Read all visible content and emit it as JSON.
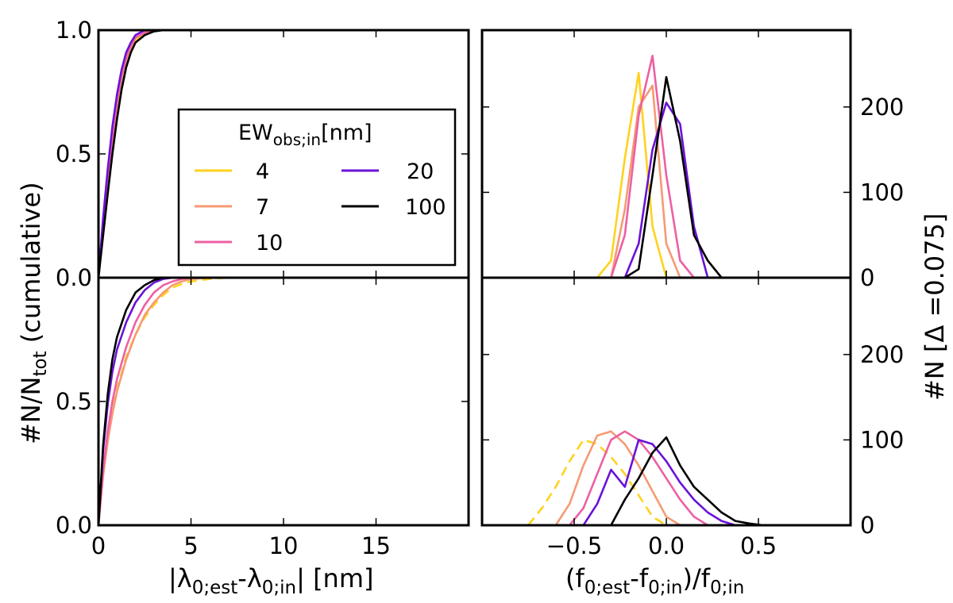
{
  "chart_data": [
    {
      "id": "cum_top",
      "type": "line",
      "panel": "top-left",
      "title": "",
      "xlim": [
        0,
        20
      ],
      "ylim": [
        0,
        1
      ],
      "xticks": [
        0,
        5,
        10,
        15
      ],
      "yticks": [
        0.0,
        0.5,
        1.0
      ],
      "ytick_labels": [
        "0.0",
        "0.5",
        "1.0"
      ],
      "xtick_labels": [],
      "series": [
        {
          "name": "4",
          "color": "#FFD21E",
          "dash": false,
          "x": [
            0,
            0.25,
            0.5,
            0.75,
            1.0,
            1.25,
            1.5,
            1.75,
            2.0,
            2.5,
            3.0,
            3.5
          ],
          "y": [
            0,
            0.18,
            0.36,
            0.52,
            0.66,
            0.78,
            0.86,
            0.92,
            0.96,
            0.99,
            1.0,
            1.0
          ]
        },
        {
          "name": "7",
          "color": "#F59A74",
          "dash": false,
          "x": [
            0,
            0.25,
            0.5,
            0.75,
            1.0,
            1.25,
            1.5,
            1.75,
            2.0,
            2.5,
            3.0
          ],
          "y": [
            0,
            0.2,
            0.38,
            0.55,
            0.69,
            0.8,
            0.88,
            0.93,
            0.97,
            0.99,
            1.0
          ]
        },
        {
          "name": "10",
          "color": "#EE5FA3",
          "dash": false,
          "x": [
            0,
            0.25,
            0.5,
            0.75,
            1.0,
            1.25,
            1.5,
            1.75,
            2.0,
            2.5,
            3.0
          ],
          "y": [
            0,
            0.21,
            0.4,
            0.57,
            0.71,
            0.82,
            0.89,
            0.94,
            0.97,
            0.99,
            1.0
          ]
        },
        {
          "name": "20",
          "color": "#6A12D8",
          "dash": false,
          "x": [
            0,
            0.25,
            0.5,
            0.75,
            1.0,
            1.25,
            1.5,
            1.75,
            2.0,
            2.5,
            3.0
          ],
          "y": [
            0,
            0.24,
            0.44,
            0.61,
            0.74,
            0.84,
            0.91,
            0.95,
            0.98,
            1.0,
            1.0
          ]
        },
        {
          "name": "100",
          "color": "#000000",
          "dash": false,
          "x": [
            0,
            0.25,
            0.5,
            0.75,
            1.0,
            1.25,
            1.5,
            1.75,
            2.0,
            2.5,
            3.0,
            3.5
          ],
          "y": [
            0,
            0.17,
            0.34,
            0.5,
            0.64,
            0.76,
            0.85,
            0.91,
            0.95,
            0.98,
            0.995,
            1.0
          ]
        }
      ]
    },
    {
      "id": "hist_top",
      "type": "line",
      "panel": "top-right",
      "title": "",
      "xlim": [
        -1.0,
        1.0
      ],
      "ylim": [
        0,
        290
      ],
      "xticks": [
        -0.5,
        0.0,
        0.5
      ],
      "yticks": [
        0,
        100,
        200
      ],
      "ytick_labels": [
        "0",
        "100",
        "200"
      ],
      "xtick_labels": [],
      "series": [
        {
          "name": "4",
          "color": "#FFD21E",
          "dash": false,
          "x": [
            -0.375,
            -0.3,
            -0.225,
            -0.15,
            -0.075,
            0.0
          ],
          "y": [
            0,
            20,
            140,
            240,
            60,
            0
          ]
        },
        {
          "name": "7",
          "color": "#F59A74",
          "dash": false,
          "x": [
            -0.3,
            -0.225,
            -0.15,
            -0.075,
            0.0,
            0.075
          ],
          "y": [
            0,
            80,
            200,
            225,
            40,
            0
          ]
        },
        {
          "name": "10",
          "color": "#EE5FA3",
          "dash": false,
          "x": [
            -0.3,
            -0.225,
            -0.15,
            -0.075,
            0.0,
            0.075,
            0.15
          ],
          "y": [
            0,
            50,
            190,
            260,
            120,
            20,
            0
          ]
        },
        {
          "name": "20",
          "color": "#6A12D8",
          "dash": false,
          "x": [
            -0.225,
            -0.15,
            -0.075,
            0.0,
            0.075,
            0.15,
            0.225
          ],
          "y": [
            0,
            40,
            150,
            205,
            180,
            60,
            0
          ]
        },
        {
          "name": "100",
          "color": "#000000",
          "dash": false,
          "x": [
            -0.225,
            -0.15,
            -0.075,
            0.0,
            0.075,
            0.15,
            0.225,
            0.3
          ],
          "y": [
            0,
            10,
            120,
            235,
            160,
            50,
            20,
            0
          ]
        }
      ]
    },
    {
      "id": "cum_bottom",
      "type": "line",
      "panel": "bottom-left",
      "title": "",
      "xlim": [
        0,
        20
      ],
      "ylim": [
        0,
        1
      ],
      "xticks": [
        0,
        5,
        10,
        15
      ],
      "yticks": [
        0.0,
        0.5
      ],
      "ytick_labels": [
        "0.0",
        "0.5"
      ],
      "xtick_labels": [
        "0",
        "5",
        "10",
        "15"
      ],
      "series": [
        {
          "name": "4",
          "color": "#FFD21E",
          "dash": true,
          "x": [
            0,
            0.25,
            0.5,
            0.75,
            1.0,
            1.5,
            2.0,
            2.5,
            3.0,
            3.5,
            4.0,
            4.5,
            5.0,
            5.5,
            6.0,
            7.0
          ],
          "y": [
            0,
            0.2,
            0.35,
            0.46,
            0.55,
            0.68,
            0.77,
            0.84,
            0.89,
            0.93,
            0.96,
            0.975,
            0.985,
            0.99,
            0.995,
            1.0
          ]
        },
        {
          "name": "7",
          "color": "#F59A74",
          "dash": false,
          "x": [
            0,
            0.25,
            0.5,
            0.75,
            1.0,
            1.5,
            2.0,
            2.5,
            3.0,
            3.5,
            4.0,
            4.5,
            5.0,
            6.0
          ],
          "y": [
            0,
            0.2,
            0.34,
            0.45,
            0.54,
            0.67,
            0.77,
            0.85,
            0.9,
            0.94,
            0.97,
            0.985,
            0.995,
            1.0
          ]
        },
        {
          "name": "10",
          "color": "#EE5FA3",
          "dash": false,
          "x": [
            0,
            0.25,
            0.5,
            0.75,
            1.0,
            1.5,
            2.0,
            2.5,
            3.0,
            3.5,
            4.0,
            4.5,
            5.0
          ],
          "y": [
            0,
            0.22,
            0.38,
            0.5,
            0.59,
            0.72,
            0.82,
            0.89,
            0.94,
            0.97,
            0.985,
            0.995,
            1.0
          ]
        },
        {
          "name": "20",
          "color": "#6A12D8",
          "dash": false,
          "x": [
            0,
            0.25,
            0.5,
            0.75,
            1.0,
            1.5,
            2.0,
            2.5,
            3.0,
            3.5,
            4.0
          ],
          "y": [
            0,
            0.3,
            0.49,
            0.62,
            0.71,
            0.82,
            0.9,
            0.95,
            0.98,
            0.995,
            1.0
          ]
        },
        {
          "name": "100",
          "color": "#000000",
          "dash": false,
          "x": [
            0,
            0.25,
            0.5,
            0.75,
            1.0,
            1.5,
            2.0,
            2.5,
            3.0,
            3.5
          ],
          "y": [
            0,
            0.32,
            0.53,
            0.67,
            0.76,
            0.87,
            0.94,
            0.97,
            0.99,
            1.0
          ]
        }
      ]
    },
    {
      "id": "hist_bottom",
      "type": "line",
      "panel": "bottom-right",
      "title": "",
      "xlim": [
        -1.0,
        1.0
      ],
      "ylim": [
        0,
        290
      ],
      "xticks": [
        -0.5,
        0.0,
        0.5
      ],
      "yticks": [
        0,
        100,
        200
      ],
      "ytick_labels": [
        "0",
        "100",
        "200"
      ],
      "xtick_labels": [
        "−0.5",
        "0.0",
        "0.5"
      ],
      "series": [
        {
          "name": "4",
          "color": "#FFD21E",
          "dash": true,
          "x": [
            -0.75,
            -0.675,
            -0.6,
            -0.525,
            -0.45,
            -0.375,
            -0.3,
            -0.225,
            -0.15,
            -0.075,
            0.0
          ],
          "y": [
            0,
            20,
            45,
            75,
            100,
            95,
            80,
            60,
            35,
            10,
            0
          ]
        },
        {
          "name": "7",
          "color": "#F59A74",
          "dash": false,
          "x": [
            -0.6,
            -0.525,
            -0.45,
            -0.375,
            -0.3,
            -0.225,
            -0.15,
            -0.075,
            0.0,
            0.075
          ],
          "y": [
            0,
            25,
            70,
            105,
            110,
            95,
            70,
            40,
            10,
            0
          ]
        },
        {
          "name": "10",
          "color": "#EE5FA3",
          "dash": false,
          "x": [
            -0.525,
            -0.45,
            -0.375,
            -0.3,
            -0.225,
            -0.15,
            -0.075,
            0.0,
            0.075,
            0.15,
            0.225
          ],
          "y": [
            0,
            20,
            60,
            100,
            110,
            100,
            80,
            55,
            30,
            10,
            0
          ]
        },
        {
          "name": "20",
          "color": "#6A12D8",
          "dash": false,
          "x": [
            -0.45,
            -0.375,
            -0.3,
            -0.225,
            -0.15,
            -0.075,
            0.0,
            0.075,
            0.15,
            0.225,
            0.3,
            0.375
          ],
          "y": [
            0,
            25,
            65,
            45,
            100,
            95,
            75,
            50,
            30,
            15,
            5,
            0
          ]
        },
        {
          "name": "100",
          "color": "#000000",
          "dash": false,
          "x": [
            -0.3,
            -0.225,
            -0.15,
            -0.075,
            0.0,
            0.075,
            0.15,
            0.225,
            0.3,
            0.375,
            0.45,
            0.525
          ],
          "y": [
            0,
            30,
            55,
            85,
            103,
            70,
            45,
            30,
            15,
            5,
            2,
            0
          ]
        }
      ]
    }
  ],
  "axes": {
    "y_left_label_main": "#N/N",
    "y_left_label_sub": "tot",
    "y_left_label_tail": " (cumulative)",
    "y_right_label": "#N [Δ =0.075]",
    "x_left_label_pre": "|λ",
    "x_left_label_sub1": "0;est",
    "x_left_label_mid": "-λ",
    "x_left_label_sub2": "0;in",
    "x_left_label_post": "| [nm]",
    "x_right_label_pre": "(f",
    "x_right_label_sub1": "0;est",
    "x_right_label_mid": "-f",
    "x_right_label_sub2": "0;in",
    "x_right_label_mid2": ")/f",
    "x_right_label_sub3": "0;in"
  },
  "legend": {
    "title_main": "EW",
    "title_sub": "obs;in",
    "title_unit": "[nm]",
    "placement": "top-left panel, center-right",
    "entries": [
      {
        "label": "4",
        "color": "#FFD21E"
      },
      {
        "label": "7",
        "color": "#F59A74"
      },
      {
        "label": "10",
        "color": "#EE5FA3"
      },
      {
        "label": "20",
        "color": "#6A12D8"
      },
      {
        "label": "100",
        "color": "#000000"
      }
    ]
  }
}
